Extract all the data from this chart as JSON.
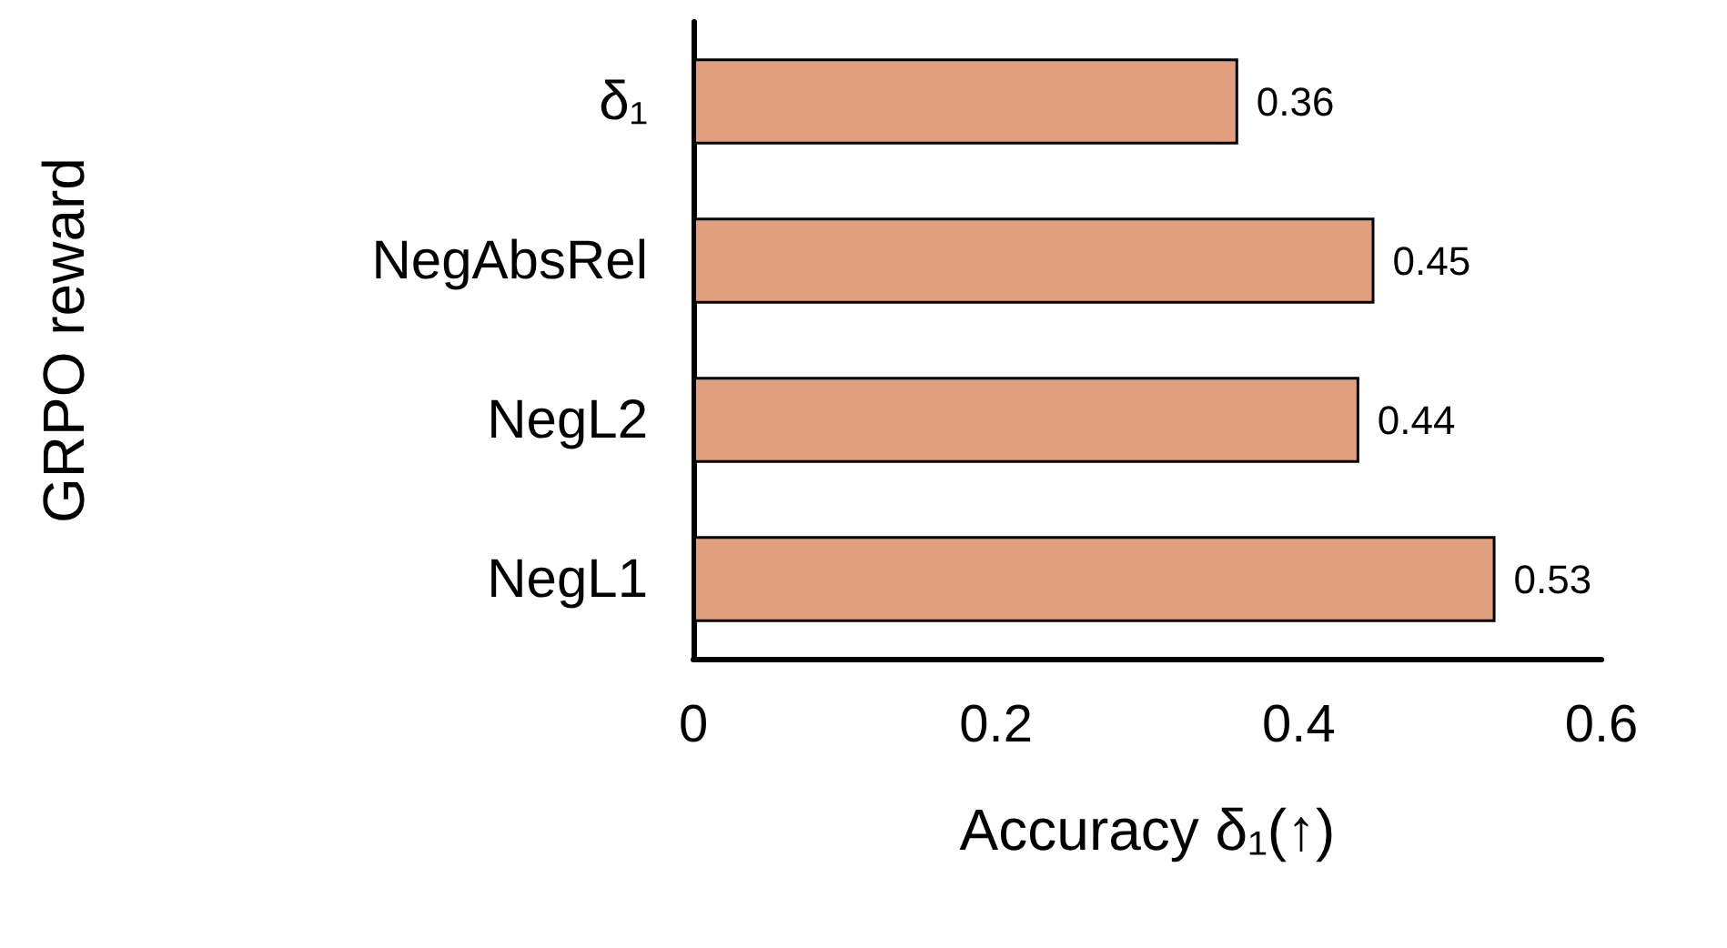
{
  "chart_data": {
    "type": "bar",
    "orientation": "horizontal",
    "xlabel": "Accuracy δ₁(↑)",
    "ylabel": "GRPO reward",
    "categories": [
      "δ₁",
      "NegAbsRel",
      "NegL2",
      "NegL1"
    ],
    "values": [
      0.36,
      0.45,
      0.44,
      0.53
    ],
    "color": "#e0a080",
    "xlim": [
      0,
      0.6
    ],
    "xticks": [
      0,
      0.2,
      0.4,
      0.6
    ],
    "data_labels": true,
    "grid": false
  }
}
